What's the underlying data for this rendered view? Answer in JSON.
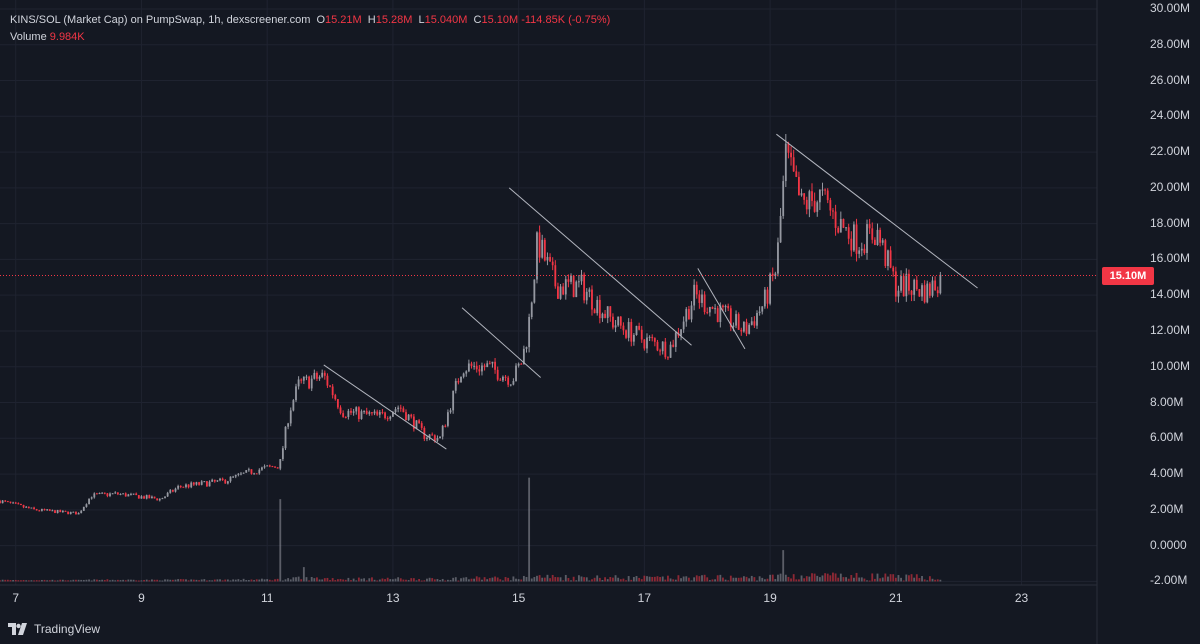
{
  "header": {
    "symbol": "KINS/SOL (Market Cap) on PumpSwap, 1h, dexscreener.com",
    "open_label": "O",
    "open": "15.21M",
    "high_label": "H",
    "high": "15.28M",
    "low_label": "L",
    "low": "15.040M",
    "close_label": "C",
    "close": "15.10M",
    "change": "-114.85K (-0.75%)",
    "volume_label": "Volume",
    "volume": "9.984K"
  },
  "price_tag": "15.10M",
  "brand": "TradingView",
  "colors": {
    "background": "#141822",
    "up": "#9598a1",
    "down": "#f23645",
    "grid": "#1f2330",
    "trendline": "#b2b5be"
  },
  "chart_data": {
    "type": "candlestick",
    "y_axis": {
      "ticks": [
        "30.00M",
        "28.00M",
        "26.00M",
        "24.00M",
        "22.00M",
        "20.00M",
        "18.00M",
        "16.00M",
        "14.00M",
        "12.00M",
        "10.00M",
        "8.00M",
        "6.00M",
        "4.00M",
        "2.00M",
        "0.0000",
        "-2.00M"
      ],
      "tick_values": [
        30,
        28,
        26,
        24,
        22,
        20,
        18,
        16,
        14,
        12,
        10,
        8,
        6,
        4,
        2,
        0,
        -2
      ],
      "unit": "M",
      "ylim": [
        -2.2,
        30.5
      ]
    },
    "x_axis": {
      "ticks": [
        "7",
        "9",
        "11",
        "13",
        "15",
        "17",
        "19",
        "21",
        "23"
      ],
      "tick_values": [
        7,
        9,
        11,
        13,
        15,
        17,
        19,
        21,
        23
      ],
      "xlim": [
        6.75,
        24.2
      ]
    },
    "last_price": 15.1,
    "path_days": [
      6.75,
      7.3,
      8.0,
      8.2,
      8.6,
      9.3,
      9.6,
      10.3,
      10.8,
      11.2,
      11.35,
      11.5,
      11.9,
      12.2,
      12.8,
      13.1,
      13.5,
      13.75,
      14.1,
      14.5,
      14.9,
      15.05,
      15.15,
      15.3,
      15.6,
      16.0,
      16.5,
      17.0,
      17.4,
      17.8,
      18.2,
      18.6,
      18.9,
      19.1,
      19.25,
      19.5,
      19.8,
      20.1,
      20.4,
      20.7,
      21.0,
      21.2,
      21.5,
      21.75
    ],
    "path_mcap": [
      2.5,
      2.0,
      1.8,
      2.8,
      2.9,
      2.6,
      3.3,
      3.6,
      4.2,
      4.5,
      7.5,
      9.0,
      9.5,
      7.5,
      7.2,
      7.8,
      6.2,
      6.0,
      10.0,
      10.0,
      9.3,
      10.3,
      12.0,
      17.0,
      14.5,
      14.5,
      12.5,
      11.5,
      11.0,
      14.0,
      13.0,
      12.0,
      13.5,
      15.5,
      21.8,
      19.0,
      19.5,
      18.0,
      17.0,
      17.5,
      14.5,
      14.5,
      14.2,
      15.1
    ],
    "volume_spikes": [
      {
        "day": 11.2,
        "vol": 4.6
      },
      {
        "day": 15.15,
        "vol": 5.8
      },
      {
        "day": 19.2,
        "vol": 1.75
      },
      {
        "day": 11.6,
        "vol": 0.8
      }
    ],
    "trendlines": [
      {
        "from": [
          11.9,
          10.1
        ],
        "to": [
          13.85,
          5.4
        ]
      },
      {
        "from": [
          14.1,
          13.3
        ],
        "to": [
          15.35,
          9.4
        ]
      },
      {
        "from": [
          14.85,
          20.0
        ],
        "to": [
          17.75,
          11.2
        ]
      },
      {
        "from": [
          17.85,
          15.5
        ],
        "to": [
          18.6,
          11.0
        ]
      },
      {
        "from": [
          19.1,
          23.0
        ],
        "to": [
          22.3,
          14.4
        ]
      }
    ]
  }
}
